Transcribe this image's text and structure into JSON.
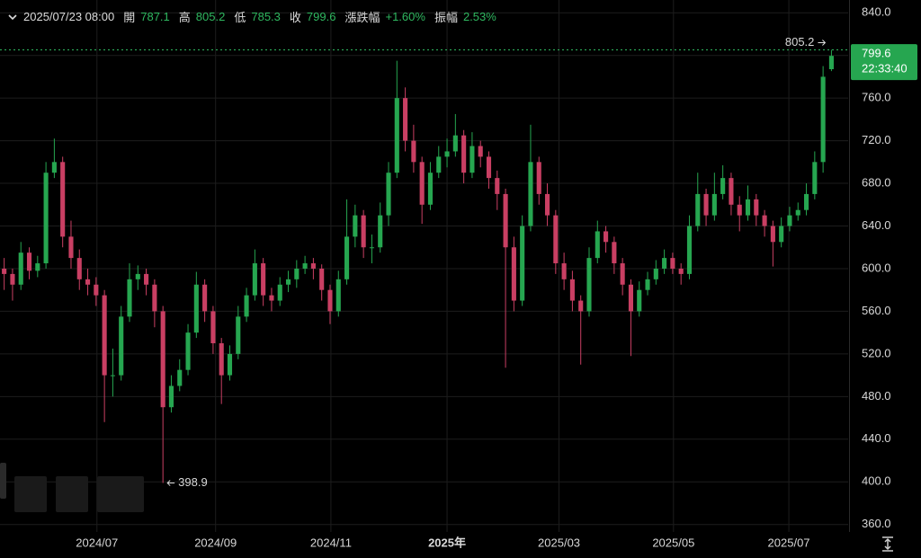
{
  "chart_data": {
    "type": "candlestick",
    "header": {
      "datetime": "2025/07/23 08:00",
      "fields": [
        {
          "label": "開",
          "value": 787.1
        },
        {
          "label": "高",
          "value": 805.2
        },
        {
          "label": "低",
          "value": 785.3
        },
        {
          "label": "收",
          "value": 799.6
        },
        {
          "label": "漲跌幅",
          "value": "+1.60%"
        },
        {
          "label": "振幅",
          "value": "2.53%"
        }
      ]
    },
    "up_color": "#26a650",
    "down_color": "#c93f63",
    "open": [
      600,
      595,
      585,
      615,
      598,
      605,
      690,
      700,
      630,
      610,
      590,
      585,
      575,
      500,
      500,
      555,
      590,
      595,
      585,
      560,
      470,
      490,
      505,
      540,
      585,
      560,
      530,
      500,
      520,
      555,
      575,
      605,
      575,
      570,
      585,
      590,
      600,
      605,
      600,
      580,
      560,
      590,
      630,
      650,
      620,
      620,
      650,
      690,
      760,
      720,
      700,
      660,
      690,
      705,
      710,
      725,
      690,
      715,
      705,
      685,
      670,
      620,
      570,
      640,
      700,
      670,
      650,
      605,
      590,
      570,
      560,
      610,
      635,
      625,
      605,
      585,
      560,
      580,
      590,
      600,
      610,
      600,
      595,
      640,
      670,
      650,
      670,
      685,
      660,
      650,
      665,
      650,
      640,
      625,
      640,
      650,
      655,
      670,
      700,
      787.1
    ],
    "high": [
      610,
      600,
      625,
      620,
      612,
      700,
      722,
      705,
      645,
      618,
      600,
      592,
      580,
      525,
      565,
      605,
      603,
      600,
      590,
      565,
      500,
      515,
      548,
      597,
      590,
      565,
      535,
      528,
      565,
      582,
      618,
      610,
      582,
      592,
      598,
      608,
      612,
      610,
      604,
      585,
      598,
      665,
      660,
      655,
      632,
      662,
      700,
      795,
      770,
      735,
      705,
      700,
      715,
      722,
      745,
      730,
      728,
      720,
      710,
      692,
      675,
      630,
      650,
      735,
      705,
      680,
      655,
      615,
      598,
      575,
      620,
      645,
      640,
      630,
      610,
      590,
      588,
      597,
      608,
      618,
      615,
      605,
      650,
      690,
      675,
      690,
      697,
      690,
      668,
      678,
      670,
      655,
      645,
      648,
      658,
      662,
      680,
      710,
      790,
      805.2
    ],
    "low": [
      580,
      570,
      580,
      590,
      592,
      600,
      685,
      620,
      600,
      580,
      575,
      565,
      456,
      480,
      495,
      550,
      580,
      575,
      545,
      398.9,
      465,
      485,
      500,
      535,
      550,
      520,
      473,
      495,
      515,
      550,
      570,
      565,
      560,
      565,
      578,
      582,
      595,
      590,
      570,
      548,
      555,
      585,
      620,
      610,
      605,
      615,
      640,
      685,
      710,
      690,
      642,
      655,
      685,
      695,
      705,
      680,
      685,
      695,
      675,
      655,
      507,
      560,
      565,
      635,
      660,
      640,
      595,
      580,
      560,
      510,
      555,
      605,
      615,
      595,
      575,
      518,
      555,
      575,
      585,
      595,
      595,
      585,
      590,
      635,
      640,
      645,
      665,
      650,
      635,
      645,
      640,
      630,
      602,
      620,
      635,
      645,
      650,
      665,
      690,
      785.3
    ],
    "close": [
      595,
      585,
      615,
      598,
      605,
      690,
      700,
      630,
      610,
      590,
      585,
      575,
      500,
      500,
      555,
      590,
      595,
      585,
      560,
      470,
      490,
      505,
      540,
      585,
      560,
      530,
      500,
      520,
      555,
      575,
      605,
      575,
      570,
      585,
      590,
      600,
      605,
      600,
      580,
      560,
      590,
      630,
      650,
      620,
      620,
      650,
      690,
      760,
      720,
      700,
      660,
      690,
      705,
      710,
      725,
      690,
      715,
      705,
      685,
      670,
      620,
      570,
      640,
      700,
      670,
      650,
      605,
      590,
      570,
      560,
      610,
      635,
      625,
      605,
      585,
      560,
      580,
      590,
      600,
      610,
      600,
      595,
      640,
      670,
      650,
      670,
      685,
      660,
      650,
      665,
      650,
      640,
      625,
      640,
      650,
      655,
      670,
      700,
      780,
      799.6
    ],
    "countdown": "22:33:40",
    "xlim": [
      -0.5,
      101
    ],
    "xticks": [
      {
        "value": 11.1,
        "label": "2024/07"
      },
      {
        "value": 25.3,
        "label": "2024/09"
      },
      {
        "value": 39.1,
        "label": "2024/11"
      },
      {
        "value": 53,
        "label": "2025年"
      },
      {
        "value": 66.4,
        "label": "2025/03"
      },
      {
        "value": 80.1,
        "label": "2025/05"
      },
      {
        "value": 93.9,
        "label": "2025/07"
      }
    ],
    "ylim": [
      353,
      852
    ],
    "yticks": [
      {
        "value": 360,
        "label": "360.0"
      },
      {
        "value": 400,
        "label": "400.0"
      },
      {
        "value": 440,
        "label": "440.0"
      },
      {
        "value": 480,
        "label": "480.0"
      },
      {
        "value": 520,
        "label": "520.0"
      },
      {
        "value": 560,
        "label": "560.0"
      },
      {
        "value": 600,
        "label": "600.0"
      },
      {
        "value": 640,
        "label": "640.0"
      },
      {
        "value": 680,
        "label": "680.0"
      },
      {
        "value": 720,
        "label": "720.0"
      },
      {
        "value": 760,
        "label": "760.0"
      },
      {
        "value": 800,
        "label": "800.0"
      },
      {
        "value": 840,
        "label": "840.0"
      }
    ],
    "grid": true
  }
}
